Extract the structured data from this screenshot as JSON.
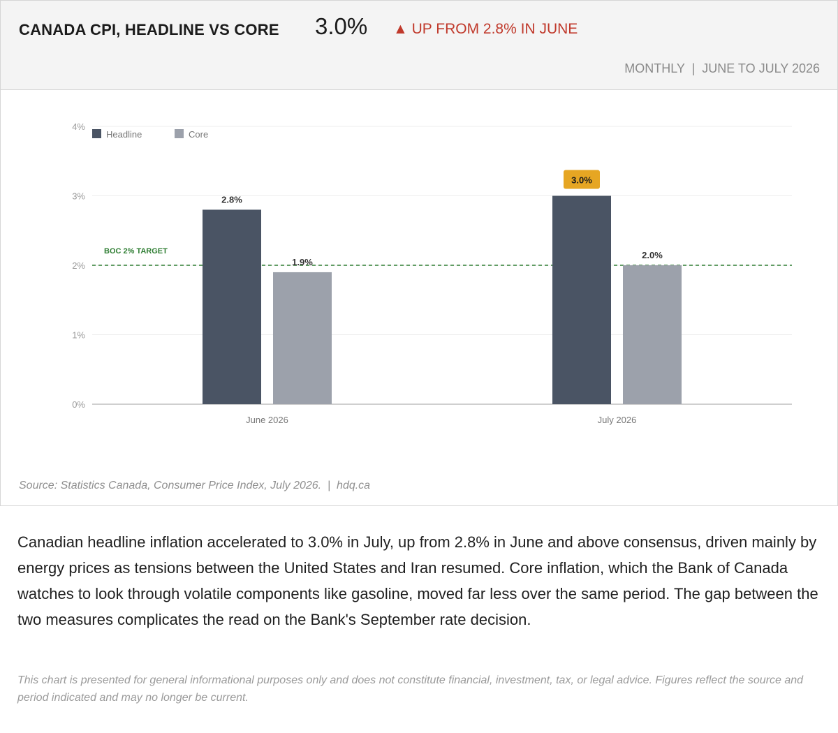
{
  "header": {
    "title": "CANADA CPI, HEADLINE VS CORE",
    "big_value": "3.0%",
    "change_arrow": "▲",
    "change_text": "UP FROM 2.8% IN JUNE",
    "period": "MONTHLY  |  JUNE TO JULY 2026"
  },
  "chart_data": {
    "type": "bar",
    "categories": [
      "June 2026",
      "July 2026"
    ],
    "series": [
      {
        "name": "Headline",
        "values": [
          2.8,
          3.0
        ],
        "color": "#4a5464",
        "labels": [
          "2.8%",
          "3.0%"
        ]
      },
      {
        "name": "Core",
        "values": [
          1.9,
          2.0
        ],
        "color": "#9ca1ab",
        "labels": [
          "1.9%",
          "2.0%"
        ]
      }
    ],
    "ylim": [
      0,
      4
    ],
    "yticks": [
      0,
      1,
      2,
      3,
      4
    ],
    "ytick_labels": [
      "0%",
      "1%",
      "2%",
      "3%",
      "4%"
    ],
    "grid": true,
    "legend": "top-left",
    "target_line": {
      "value": 2,
      "label": "BOC 2% TARGET",
      "color": "#2e7d32"
    },
    "highlight": {
      "series": 0,
      "index": 1,
      "color": "#e6a623"
    }
  },
  "source": "Source: Statistics Canada, Consumer Price Index, July 2026.  |  hdq.ca",
  "body_text": "Canadian headline inflation accelerated to 3.0% in July, up from 2.8% in June and above consensus, driven mainly by energy prices as tensions between the United States and Iran resumed. Core inflation, which the Bank of Canada watches to look through volatile components like gasoline, moved far less over the same period. The gap between the two measures complicates the read on the Bank's September rate decision.",
  "disclaimer": "This chart is presented for general informational purposes only and does not constitute financial, investment, tax, or legal advice. Figures reflect the source and period indicated and may no longer be current."
}
